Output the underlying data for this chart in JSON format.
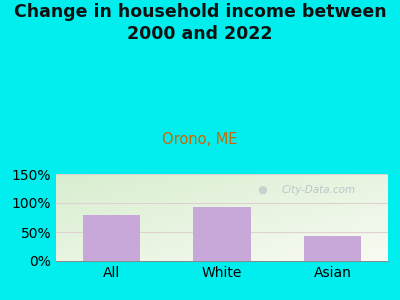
{
  "title": "Change in household income between\n2000 and 2022",
  "subtitle": "Orono, ME",
  "categories": [
    "All",
    "White",
    "Asian"
  ],
  "values": [
    79,
    93,
    43
  ],
  "bar_color": "#C8A8D8",
  "title_fontsize": 12.5,
  "subtitle_fontsize": 10.5,
  "subtitle_color": "#CC6600",
  "tick_label_fontsize": 10,
  "ylim": [
    0,
    150
  ],
  "yticks": [
    0,
    50,
    100,
    150
  ],
  "ytick_labels": [
    "0%",
    "50%",
    "100%",
    "150%"
  ],
  "bg_outer": "#00EEEE",
  "bg_plot_topleft": "#D8EED0",
  "bg_plot_bottomright": "#F8FBF2",
  "watermark": "City-Data.com",
  "watermark_color": "#B0BEC8",
  "grid_color": "#E0D0D0",
  "title_color": "#111111"
}
